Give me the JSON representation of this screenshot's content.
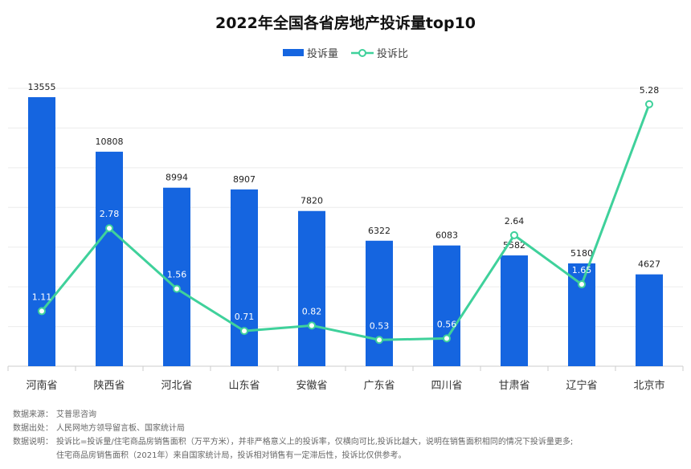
{
  "title": "2022年全国各省房地产投诉量top10",
  "legend": {
    "bar_label": "投诉量",
    "line_label": "投诉比"
  },
  "colors": {
    "bar": "#1565e0",
    "line": "#3fd19b",
    "grid": "#ececec",
    "axis": "#cccccc"
  },
  "chart_data": {
    "type": "bar",
    "title": "2022年全国各省房地产投诉量top10",
    "categories": [
      "河南省",
      "陕西省",
      "河北省",
      "山东省",
      "安徽省",
      "广东省",
      "四川省",
      "甘肃省",
      "辽宁省",
      "北京市"
    ],
    "series": [
      {
        "name": "投诉量",
        "type": "bar",
        "values": [
          13555,
          10808,
          8994,
          8907,
          7820,
          6322,
          6083,
          5582,
          5180,
          4627
        ]
      },
      {
        "name": "投诉比",
        "type": "line",
        "values": [
          1.11,
          2.78,
          1.56,
          0.71,
          0.82,
          0.53,
          0.56,
          2.64,
          1.65,
          5.28
        ]
      }
    ],
    "ylim_bar": [
      0,
      14000
    ],
    "ylim_line": [
      0,
      5.6
    ],
    "grid": true,
    "legend_position": "top-center"
  },
  "notes": {
    "source_label": "数据来源：",
    "source_value": "艾普思咨询",
    "origin_label": "数据出处：",
    "origin_value": "人民网地方领导留言板、国家统计局",
    "explain_label": "数据说明：",
    "explain_value_1": "投诉比=投诉量/住宅商品房销售面积（万平方米），并非严格意义上的投诉率，仅横向可比,投诉比越大，说明在销售面积相同的情况下投诉量更多;",
    "explain_value_2": "住宅商品房销售面积（2021年）来自国家统计局，投诉相对销售有一定滞后性，投诉比仅供参考。"
  }
}
